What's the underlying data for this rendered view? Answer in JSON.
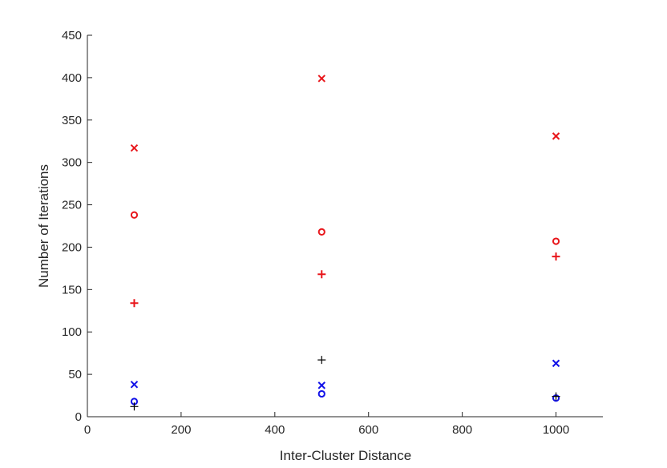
{
  "chart_data": {
    "type": "scatter",
    "title": "",
    "xlabel": "Inter-Cluster Distance",
    "ylabel": "Number of Iterations",
    "xlim": [
      0,
      1100
    ],
    "ylim": [
      0,
      450
    ],
    "xticks": [
      0,
      200,
      400,
      600,
      800,
      1000
    ],
    "yticks": [
      0,
      50,
      100,
      150,
      200,
      250,
      300,
      350,
      400,
      450
    ],
    "grid": false,
    "legend": "none",
    "series": [
      {
        "marker": "x",
        "color": "#e8161b",
        "points": [
          [
            100,
            317
          ],
          [
            500,
            399
          ],
          [
            1000,
            331
          ]
        ]
      },
      {
        "marker": "o",
        "color": "#e8161b",
        "points": [
          [
            100,
            238
          ],
          [
            500,
            218
          ],
          [
            1000,
            207
          ]
        ]
      },
      {
        "marker": "+",
        "color": "#e8161b",
        "points": [
          [
            100,
            134
          ],
          [
            500,
            168
          ],
          [
            1000,
            189
          ]
        ]
      },
      {
        "marker": "x",
        "color": "#1212e8",
        "points": [
          [
            100,
            38
          ],
          [
            500,
            37
          ],
          [
            1000,
            63
          ]
        ]
      },
      {
        "marker": "o",
        "color": "#1212e8",
        "points": [
          [
            100,
            18
          ],
          [
            500,
            27
          ],
          [
            1000,
            22
          ]
        ]
      },
      {
        "marker": "+",
        "color": "#000000",
        "points": [
          [
            100,
            12
          ],
          [
            500,
            67
          ],
          [
            1000,
            24
          ]
        ]
      }
    ]
  }
}
